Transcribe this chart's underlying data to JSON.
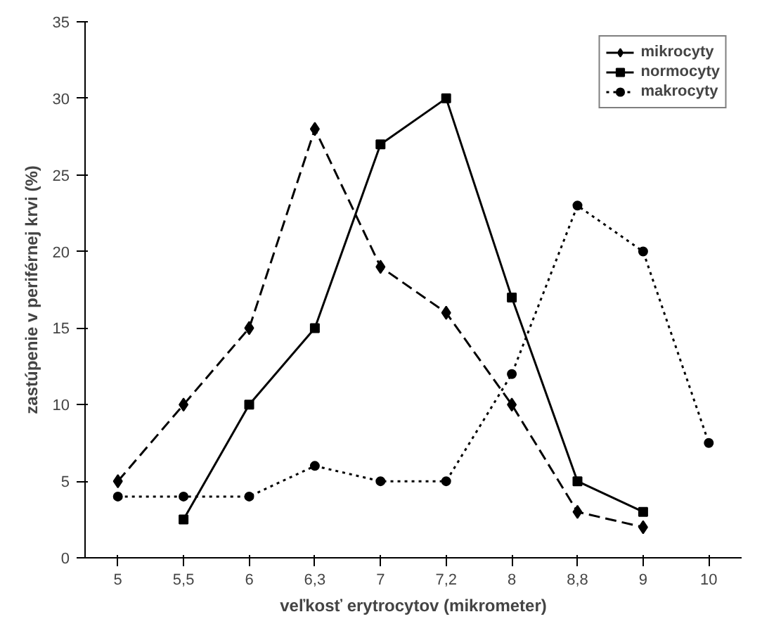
{
  "chart_data": {
    "type": "line",
    "xlabel": "veľkosť erytrocytov (mikrometer)",
    "ylabel": "zastúpenie v periférnej krvi (%)",
    "categories": [
      "5",
      "5,5",
      "6",
      "6,3",
      "7",
      "7,2",
      "8",
      "8,8",
      "9",
      "10"
    ],
    "series": [
      {
        "name": "mikrocyty",
        "color": "#000000",
        "marker": "diamond",
        "line_style": "dashed",
        "values": [
          5,
          10,
          15,
          28,
          19,
          16,
          10,
          3,
          2,
          null
        ]
      },
      {
        "name": "normocyty",
        "color": "#000000",
        "marker": "square",
        "line_style": "solid",
        "values": [
          null,
          2.5,
          10,
          15,
          27,
          30,
          17,
          5,
          3,
          null
        ]
      },
      {
        "name": "makrocyty",
        "color": "#000000",
        "marker": "circle",
        "line_style": "dotted",
        "values": [
          4,
          4,
          4,
          6,
          5,
          5,
          12,
          23,
          20,
          7.5
        ]
      }
    ],
    "ylim": [
      0,
      35
    ],
    "yticks": [
      0,
      5,
      10,
      15,
      20,
      25,
      30,
      35
    ],
    "grid": false,
    "legend": "top right"
  }
}
